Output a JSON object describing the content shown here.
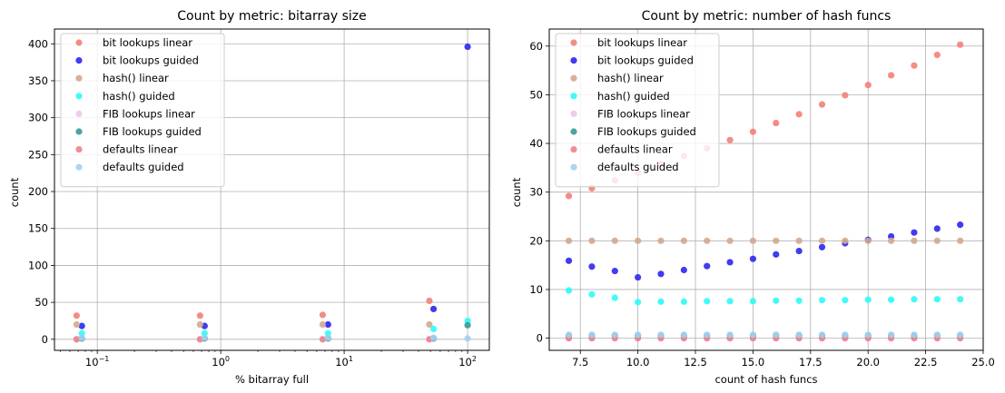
{
  "series_styles": [
    {
      "name": "bit lookups linear",
      "color": "#f47f78"
    },
    {
      "name": "bit lookups guided",
      "color": "#2c26ef"
    },
    {
      "name": "hash() linear",
      "color": "#d4a890"
    },
    {
      "name": "hash() guided",
      "color": "#2ff9f9"
    },
    {
      "name": "FIB lookups linear",
      "color": "#ecc6ed"
    },
    {
      "name": "FIB lookups guided",
      "color": "#3a9898"
    },
    {
      "name": "defaults linear",
      "color": "#ee8288"
    },
    {
      "name": "defaults guided",
      "color": "#a4d0f0"
    }
  ],
  "chart_data": [
    {
      "type": "scatter",
      "title": "Count by metric: bitarray size",
      "xlabel": "% bitarray full",
      "ylabel": "count",
      "xscale": "log",
      "xlim": [
        0.045,
        150
      ],
      "ylim": [
        -15,
        420
      ],
      "x_ticks": [
        {
          "value": 0.1,
          "base": "10",
          "exp": "−1"
        },
        {
          "value": 1,
          "base": "10",
          "exp": "0"
        },
        {
          "value": 10,
          "base": "10",
          "exp": "1"
        },
        {
          "value": 100,
          "base": "10",
          "exp": "2"
        }
      ],
      "y_ticks": [
        0,
        50,
        100,
        150,
        200,
        250,
        300,
        350,
        400
      ],
      "grid": true,
      "legend_position": "upper-left",
      "series": [
        {
          "name": "bit lookups linear",
          "x": [
            0.068,
            0.68,
            6.7,
            49
          ],
          "y": [
            32,
            32,
            33,
            52
          ]
        },
        {
          "name": "bit lookups guided",
          "x": [
            0.075,
            0.74,
            7.4,
            53,
            100
          ],
          "y": [
            18,
            18,
            20,
            41,
            396
          ]
        },
        {
          "name": "hash() linear",
          "x": [
            0.068,
            0.68,
            6.7,
            49
          ],
          "y": [
            20,
            20,
            20,
            20
          ]
        },
        {
          "name": "hash() guided",
          "x": [
            0.075,
            0.74,
            7.4,
            53,
            100
          ],
          "y": [
            8,
            8,
            8,
            14,
            25
          ]
        },
        {
          "name": "FIB lookups linear",
          "x": [
            0.068,
            0.68,
            6.7,
            49
          ],
          "y": [
            0,
            0,
            0,
            0
          ]
        },
        {
          "name": "FIB lookups guided",
          "x": [
            0.075,
            0.74,
            7.4,
            53,
            100
          ],
          "y": [
            1,
            1,
            1,
            1,
            19
          ]
        },
        {
          "name": "defaults linear",
          "x": [
            0.068,
            0.68,
            6.7,
            49
          ],
          "y": [
            0,
            0,
            0,
            0
          ]
        },
        {
          "name": "defaults guided",
          "x": [
            0.075,
            0.74,
            7.4,
            53,
            100
          ],
          "y": [
            2,
            2,
            2,
            2,
            1
          ]
        }
      ]
    },
    {
      "type": "scatter",
      "title": "Count by metric: number of hash funcs",
      "xlabel": "count of hash funcs",
      "ylabel": "count",
      "xscale": "linear",
      "xlim": [
        6.15,
        25
      ],
      "ylim": [
        -2.5,
        63.5
      ],
      "x_ticks": [
        {
          "value": 7.5,
          "label": "7.5"
        },
        {
          "value": 10,
          "label": "10.0"
        },
        {
          "value": 12.5,
          "label": "12.5"
        },
        {
          "value": 15,
          "label": "15.0"
        },
        {
          "value": 17.5,
          "label": "17.5"
        },
        {
          "value": 20,
          "label": "20.0"
        },
        {
          "value": 22.5,
          "label": "22.5"
        },
        {
          "value": 25,
          "label": "25.0"
        }
      ],
      "y_ticks": [
        0,
        10,
        20,
        30,
        40,
        50,
        60
      ],
      "grid": true,
      "legend_position": "upper-left",
      "series": [
        {
          "name": "bit lookups linear",
          "x": [
            7,
            8,
            9,
            10,
            11,
            12,
            13,
            14,
            15,
            16,
            17,
            18,
            19,
            20,
            21,
            22,
            23,
            24
          ],
          "y": [
            29.2,
            30.8,
            32.4,
            34,
            35.8,
            37.4,
            39,
            40.7,
            42.4,
            44.2,
            46,
            48,
            49.9,
            52,
            54,
            56,
            58.2,
            60.3
          ]
        },
        {
          "name": "bit lookups guided",
          "x": [
            7,
            8,
            9,
            10,
            11,
            12,
            13,
            14,
            15,
            16,
            17,
            18,
            19,
            20,
            21,
            22,
            23,
            24
          ],
          "y": [
            15.9,
            14.7,
            13.8,
            12.5,
            13.2,
            14,
            14.8,
            15.6,
            16.3,
            17.2,
            17.9,
            18.7,
            19.5,
            20.2,
            20.9,
            21.7,
            22.5,
            23.3
          ]
        },
        {
          "name": "hash() linear",
          "x": [
            7,
            8,
            9,
            10,
            11,
            12,
            13,
            14,
            15,
            16,
            17,
            18,
            19,
            20,
            21,
            22,
            23,
            24
          ],
          "y": [
            20,
            20,
            20,
            20,
            20,
            20,
            20,
            20,
            20,
            20,
            20,
            20,
            20,
            20,
            20,
            20,
            20,
            20
          ]
        },
        {
          "name": "hash() guided",
          "x": [
            7,
            8,
            9,
            10,
            11,
            12,
            13,
            14,
            15,
            16,
            17,
            18,
            19,
            20,
            21,
            22,
            23,
            24
          ],
          "y": [
            9.8,
            9,
            8.3,
            7.4,
            7.5,
            7.5,
            7.6,
            7.6,
            7.6,
            7.7,
            7.7,
            7.8,
            7.8,
            7.9,
            7.9,
            8,
            8,
            8
          ]
        },
        {
          "name": "FIB lookups linear",
          "x": [
            7,
            8,
            9,
            10,
            11,
            12,
            13,
            14,
            15,
            16,
            17,
            18,
            19,
            20,
            21,
            22,
            23,
            24
          ],
          "y": [
            0,
            0,
            0,
            0,
            0,
            0,
            0,
            0,
            0,
            0,
            0,
            0,
            0,
            0,
            0,
            0,
            0,
            0
          ]
        },
        {
          "name": "FIB lookups guided",
          "x": [
            7,
            8,
            9,
            10,
            11,
            12,
            13,
            14,
            15,
            16,
            17,
            18,
            19,
            20,
            21,
            22,
            23,
            24
          ],
          "y": [
            0.5,
            0.5,
            0.5,
            0.5,
            0.5,
            0.5,
            0.5,
            0.5,
            0.5,
            0.5,
            0.5,
            0.5,
            0.5,
            0.5,
            0.5,
            0.5,
            0.5,
            0.5
          ]
        },
        {
          "name": "defaults linear",
          "x": [
            7,
            8,
            9,
            10,
            11,
            12,
            13,
            14,
            15,
            16,
            17,
            18,
            19,
            20,
            21,
            22,
            23,
            24
          ],
          "y": [
            0,
            0,
            0,
            0,
            0,
            0,
            0,
            0,
            0,
            0,
            0,
            0,
            0,
            0,
            0,
            0,
            0,
            0
          ]
        },
        {
          "name": "defaults guided",
          "x": [
            7,
            8,
            9,
            10,
            11,
            12,
            13,
            14,
            15,
            16,
            17,
            18,
            19,
            20,
            21,
            22,
            23,
            24
          ],
          "y": [
            0.7,
            0.7,
            0.7,
            0.7,
            0.7,
            0.7,
            0.7,
            0.7,
            0.7,
            0.7,
            0.7,
            0.7,
            0.7,
            0.7,
            0.7,
            0.7,
            0.7,
            0.7
          ]
        }
      ]
    }
  ]
}
